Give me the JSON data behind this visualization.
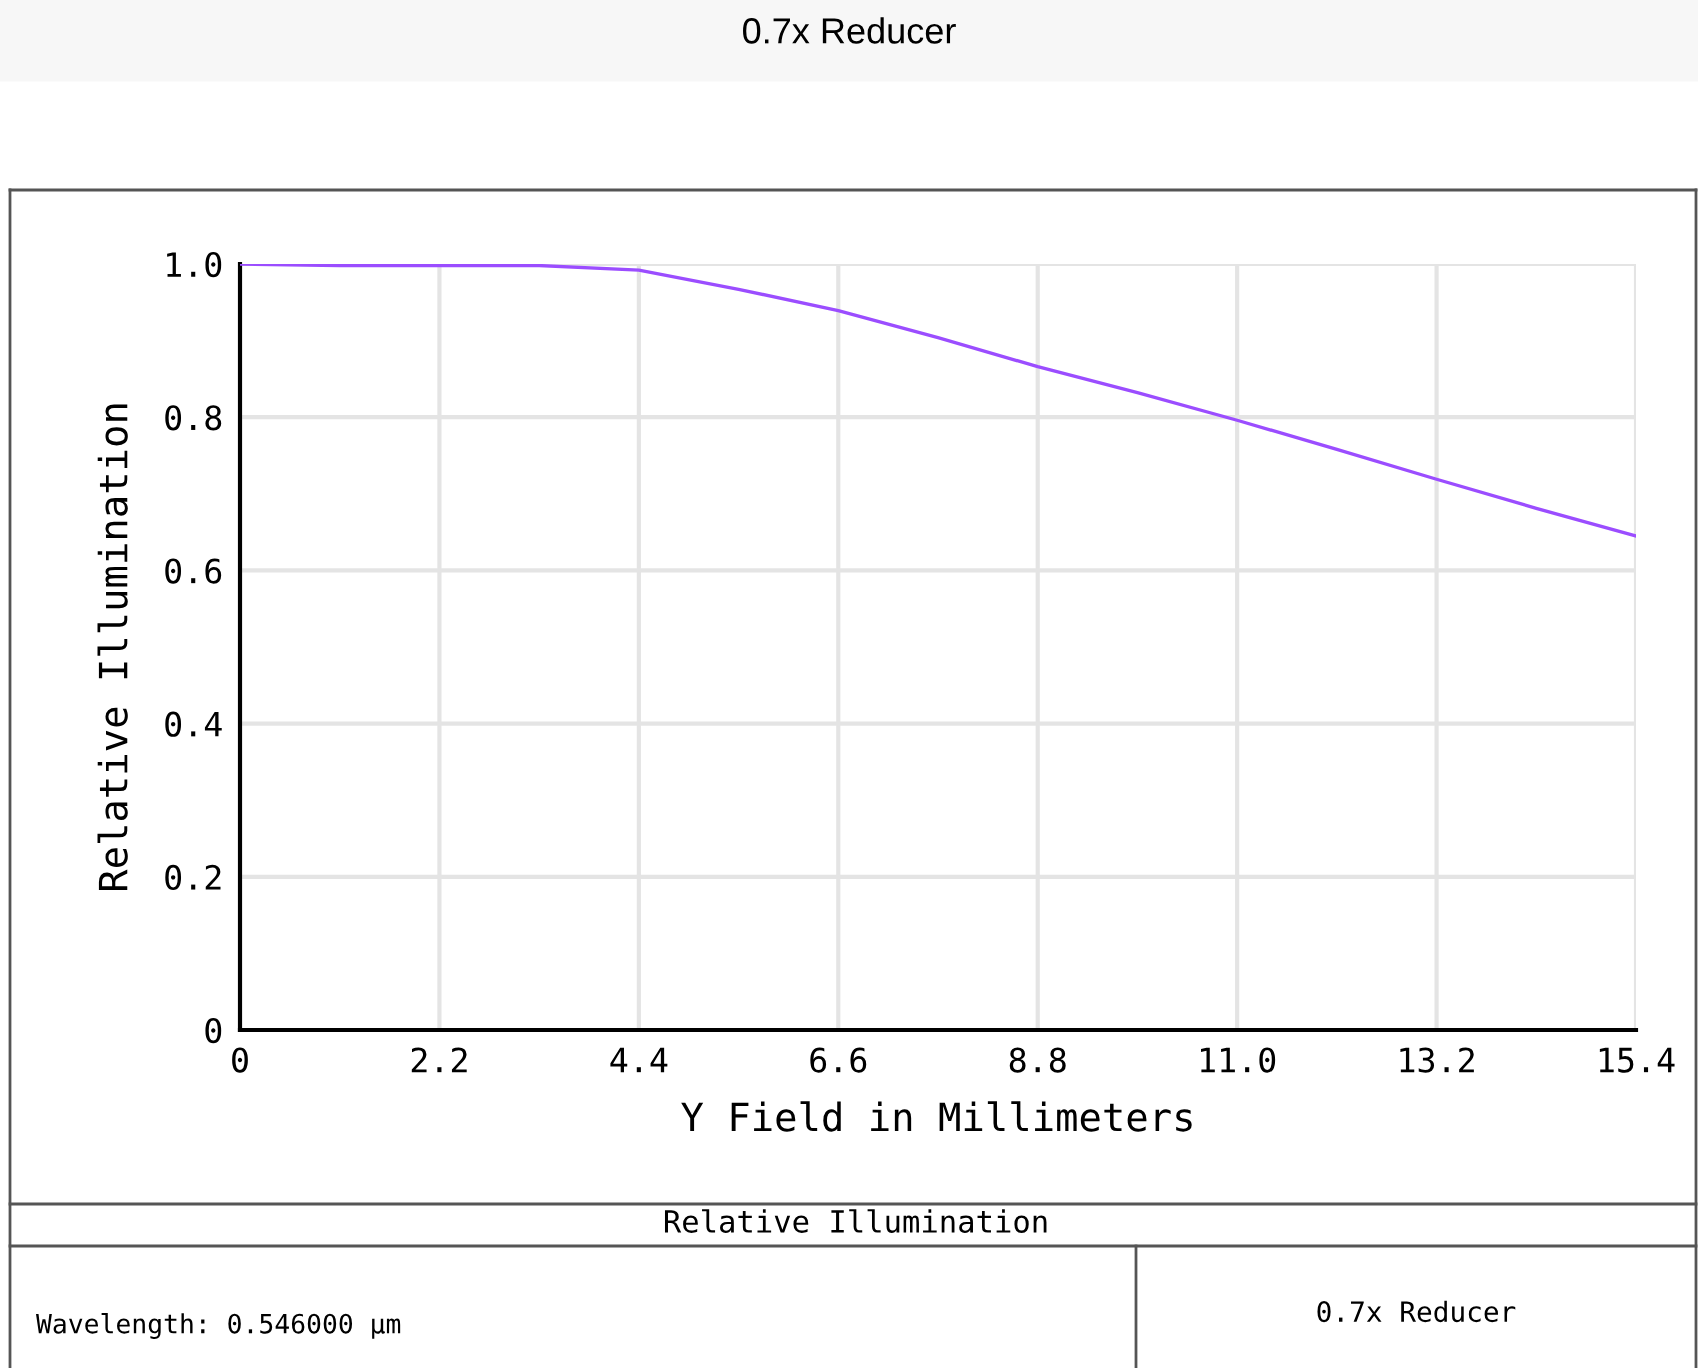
{
  "chart_data": {
    "type": "line",
    "title": "0.7x Reducer",
    "xlabel": "Y Field in Millimeters",
    "ylabel": "Relative Illumination",
    "annotations": [
      "Relative Illumination",
      "Wavelength: 0.546000 µm",
      "0.7x Reducer"
    ],
    "x": [
      0,
      1.1,
      2.2,
      3.3,
      4.4,
      5.5,
      6.6,
      7.7,
      8.8,
      9.9,
      11.0,
      12.1,
      13.2,
      14.3,
      15.4
    ],
    "series": [
      {
        "color": "#9b4dff",
        "values": [
          1.0,
          0.998,
          0.998,
          0.998,
          0.992,
          0.967,
          0.939,
          0.904,
          0.866,
          0.832,
          0.796,
          0.758,
          0.719,
          0.681,
          0.645
        ]
      }
    ],
    "xlim": [
      0,
      15.4
    ],
    "ylim": [
      0,
      1.0
    ],
    "xticks": [
      0,
      2.2,
      4.4,
      6.6,
      8.8,
      {
        "value": 11.0,
        "label": "11.0"
      },
      13.2,
      15.4
    ],
    "yticks": [
      0,
      0.2,
      0.4,
      0.6,
      0.8,
      {
        "value": 1.0,
        "label": "1.0"
      }
    ],
    "grid": true,
    "legend": false,
    "marker": "none",
    "line_style": "solid"
  }
}
